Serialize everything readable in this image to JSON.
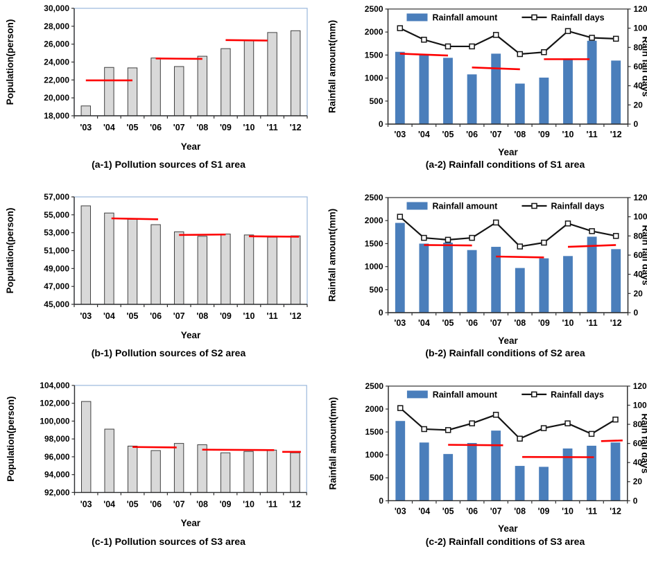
{
  "page": {
    "background": "#ffffff"
  },
  "styles": {
    "text_color": "#000000",
    "legend_text_color": "#17375e",
    "axis_color": "#2f2f2f",
    "plot_border_blue": "#9ab7dc",
    "bar_gray_fill": "#d9d9d9",
    "bar_gray_stroke": "#404040",
    "bar_blue_fill": "#4a7ebb",
    "trend_red": "#fe0000",
    "days_line_color": "#141414",
    "marker_fill": "#ffffff"
  },
  "chart_data": [
    {
      "id": "a1",
      "type": "bar",
      "title": "(a-1) Pollution sources of S1 area",
      "xlabel": "Year",
      "ylabel": "Population(person)",
      "categories": [
        "'03",
        "'04",
        "'05",
        "'06",
        "'07",
        "'08",
        "'09",
        "'10",
        "'11",
        "'12"
      ],
      "y_axis": {
        "min": 18000,
        "max": 30000,
        "step": 2000,
        "format": "comma"
      },
      "values": [
        19100,
        23400,
        23350,
        24450,
        23500,
        24650,
        25500,
        26400,
        27300,
        27500
      ],
      "trend_segments": [
        {
          "from": 0,
          "to": 2,
          "y1": 21950,
          "y2": 21950
        },
        {
          "from": 3,
          "to": 5,
          "y1": 24400,
          "y2": 24350
        },
        {
          "from": 6,
          "to": 7.8,
          "y1": 26450,
          "y2": 26400
        }
      ],
      "gridlines": false,
      "legend": null
    },
    {
      "id": "a2",
      "type": "combo",
      "title": "(a-2) Rainfall conditions of S1 area",
      "xlabel": "Year",
      "ylabel": "Rainfall amount(mm)",
      "ylabel_right": "Rain fall days",
      "categories": [
        "'03",
        "'04",
        "'05",
        "'06",
        "'07",
        "'08",
        "'09",
        "'10",
        "'11",
        "'12"
      ],
      "y_axis": {
        "min": 0,
        "max": 2500,
        "step": 500,
        "format": "plain"
      },
      "y_axis_right": {
        "min": 0,
        "max": 120,
        "step": 20
      },
      "legend": {
        "bars_label": "Rainfall amount",
        "line_label": "Rainfall days"
      },
      "series": {
        "bars": [
          1570,
          1500,
          1440,
          1080,
          1530,
          880,
          1010,
          1400,
          1810,
          1380
        ],
        "line": [
          100,
          88,
          81,
          81,
          93,
          73,
          75,
          97,
          90,
          89
        ]
      },
      "trend_segments": [
        {
          "from": 0,
          "to": 2,
          "y1": 1530,
          "y2": 1490
        },
        {
          "from": 3,
          "to": 5,
          "y1": 1230,
          "y2": 1190
        },
        {
          "from": 6,
          "to": 7.9,
          "y1": 1410,
          "y2": 1410
        }
      ],
      "gridlines": false
    },
    {
      "id": "b1",
      "type": "bar",
      "title": "(b-1) Pollution sources of S2 area",
      "xlabel": "Year",
      "ylabel": "Population(person)",
      "categories": [
        "'03",
        "'04",
        "'05",
        "'06",
        "'07",
        "'08",
        "'09",
        "'10",
        "'11",
        "'12"
      ],
      "y_axis": {
        "min": 45000,
        "max": 57000,
        "step": 2000,
        "format": "comma"
      },
      "values": [
        56000,
        55200,
        54500,
        53900,
        53100,
        52600,
        52850,
        52750,
        52500,
        52650
      ],
      "trend_segments": [
        {
          "from": 1.1,
          "to": 3.1,
          "y1": 54600,
          "y2": 54500
        },
        {
          "from": 4,
          "to": 6,
          "y1": 52750,
          "y2": 52800
        },
        {
          "from": 7,
          "to": 9.15,
          "y1": 52600,
          "y2": 52550
        }
      ],
      "gridlines": false,
      "legend": null
    },
    {
      "id": "b2",
      "type": "combo",
      "title": "(b-2) Rainfall conditions of S2 area",
      "xlabel": "Year",
      "ylabel": "Rainfall amount(mm)",
      "ylabel_right": "Rain fall days",
      "categories": [
        "'03",
        "'04",
        "'05",
        "'06",
        "'07",
        "'08",
        "'09",
        "'10",
        "'11",
        "'12"
      ],
      "y_axis": {
        "min": 0,
        "max": 2500,
        "step": 500,
        "format": "plain"
      },
      "y_axis_right": {
        "min": 0,
        "max": 120,
        "step": 20
      },
      "legend": {
        "bars_label": "Rainfall amount",
        "line_label": "Rainfall days"
      },
      "series": {
        "bars": [
          1950,
          1500,
          1520,
          1360,
          1430,
          970,
          1180,
          1230,
          1650,
          1380
        ],
        "line": [
          100,
          78,
          76,
          78,
          94,
          69,
          73,
          93,
          85,
          80
        ]
      },
      "trend_segments": [
        {
          "from": 1,
          "to": 3,
          "y1": 1470,
          "y2": 1460
        },
        {
          "from": 4,
          "to": 6,
          "y1": 1220,
          "y2": 1200
        },
        {
          "from": 7,
          "to": 9,
          "y1": 1430,
          "y2": 1470
        }
      ],
      "gridlines": false
    },
    {
      "id": "c1",
      "type": "bar",
      "title": "(c-1) Pollution sources of S3 area",
      "xlabel": "Year",
      "ylabel": "Population(person)",
      "categories": [
        "'03",
        "'04",
        "'05",
        "'06",
        "'07",
        "'08",
        "'09",
        "'10",
        "'11",
        "'12"
      ],
      "y_axis": {
        "min": 92000,
        "max": 104000,
        "step": 2000,
        "format": "comma"
      },
      "values": [
        102200,
        99100,
        97200,
        96700,
        97500,
        97350,
        96450,
        96600,
        96750,
        96450
      ],
      "trend_segments": [
        {
          "from": 2,
          "to": 3.9,
          "y1": 97100,
          "y2": 97050
        },
        {
          "from": 5,
          "to": 8.1,
          "y1": 96800,
          "y2": 96750
        },
        {
          "from": 8.45,
          "to": 9.25,
          "y1": 96550,
          "y2": 96550
        }
      ],
      "gridlines": false,
      "legend": null
    },
    {
      "id": "c2",
      "type": "combo",
      "title": "(c-2) Rainfall conditions of S3 area",
      "xlabel": "Year",
      "ylabel": "Rainfall amount(mm)",
      "ylabel_right": "Rain fall days",
      "categories": [
        "'03",
        "'04",
        "'05",
        "'06",
        "'07",
        "'08",
        "'09",
        "'10",
        "'11",
        "'12"
      ],
      "y_axis": {
        "min": 0,
        "max": 2500,
        "step": 500,
        "format": "plain"
      },
      "y_axis_right": {
        "min": 0,
        "max": 120,
        "step": 20
      },
      "legend": {
        "bars_label": "Rainfall amount",
        "line_label": "Rainfall days"
      },
      "series": {
        "bars": [
          1740,
          1270,
          1020,
          1260,
          1530,
          760,
          740,
          1140,
          1200,
          1270
        ],
        "line": [
          97,
          75,
          74,
          81,
          90,
          65,
          76,
          81,
          70,
          85
        ]
      },
      "trend_segments": [
        {
          "from": 2,
          "to": 4.3,
          "y1": 1220,
          "y2": 1210
        },
        {
          "from": 5.1,
          "to": 8.1,
          "y1": 955,
          "y2": 950
        },
        {
          "from": 8.4,
          "to": 9.3,
          "y1": 1300,
          "y2": 1315
        }
      ],
      "gridlines": false
    }
  ]
}
